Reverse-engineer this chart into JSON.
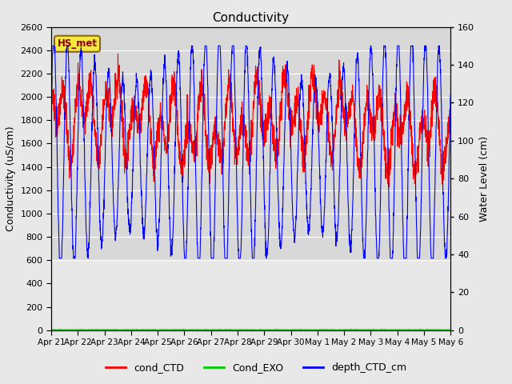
{
  "title": "Conductivity",
  "ylabel_left": "Conductivity (uS/cm)",
  "ylabel_right": "Water Level (cm)",
  "ylim_left": [
    0,
    2600
  ],
  "ylim_right": [
    0,
    160
  ],
  "yticks_left": [
    0,
    200,
    400,
    600,
    800,
    1000,
    1200,
    1400,
    1600,
    1800,
    2000,
    2200,
    2400,
    2600
  ],
  "yticks_right": [
    0,
    20,
    40,
    60,
    80,
    100,
    120,
    140,
    160
  ],
  "date_labels": [
    "Apr 21",
    "Apr 22",
    "Apr 23",
    "Apr 24",
    "Apr 25",
    "Apr 26",
    "Apr 27",
    "Apr 28",
    "Apr 29",
    "Apr 30",
    "May 1",
    "May 2",
    "May 3",
    "May 4",
    "May 5",
    "May 6"
  ],
  "bg_color": "#e8e8e8",
  "upper_band_color": "#d8d8d8",
  "line_cond_CTD_color": "#ff0000",
  "line_Cond_EXO_color": "#00cc00",
  "line_depth_CTD_color": "#0000ff",
  "hs_met_label": "HS_met",
  "hs_met_color": "#8B0000",
  "hs_met_bg": "#f5e642",
  "hs_met_edge": "#8B6914",
  "legend_labels": [
    "cond_CTD",
    "Cond_EXO",
    "depth_CTD_cm"
  ],
  "grid_color": "#ffffff",
  "tidal_period_days": 0.517,
  "n_days": 15,
  "random_seed": 42
}
